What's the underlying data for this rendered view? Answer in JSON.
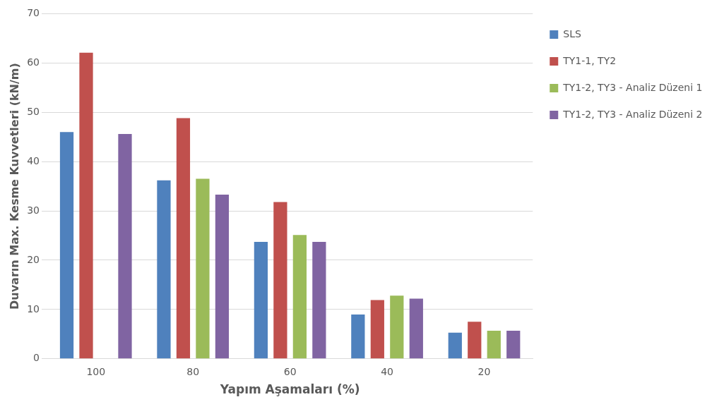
{
  "chart_data": {
    "type": "bar",
    "xlabel": "Yapım Aşamaları (%)",
    "ylabel": "Duvarın Max. Kesme Kuvvetleri (kN/m)",
    "categories": [
      "100",
      "80",
      "60",
      "40",
      "20"
    ],
    "series": [
      {
        "name": "SLS",
        "color": "#4f81bd",
        "values": [
          46,
          36.2,
          23.7,
          9.0,
          5.3
        ]
      },
      {
        "name": "TY1-1, TY2",
        "color": "#c0504d",
        "values": [
          62.1,
          48.8,
          31.8,
          11.9,
          7.5
        ]
      },
      {
        "name": "TY1-2, TY3 - Analiz Düzeni 1",
        "color": "#9bbb59",
        "values": [
          null,
          36.5,
          25.1,
          12.8,
          5.7
        ]
      },
      {
        "name": "TY1-2, TY3 - Analiz Düzeni 2",
        "color": "#8064a2",
        "values": [
          45.6,
          33.3,
          23.7,
          12.2,
          5.7
        ]
      }
    ],
    "ylim": [
      0,
      70
    ],
    "yticks": [
      0,
      10,
      20,
      30,
      40,
      50,
      60,
      70
    ],
    "grid": "y",
    "legend": "right"
  }
}
